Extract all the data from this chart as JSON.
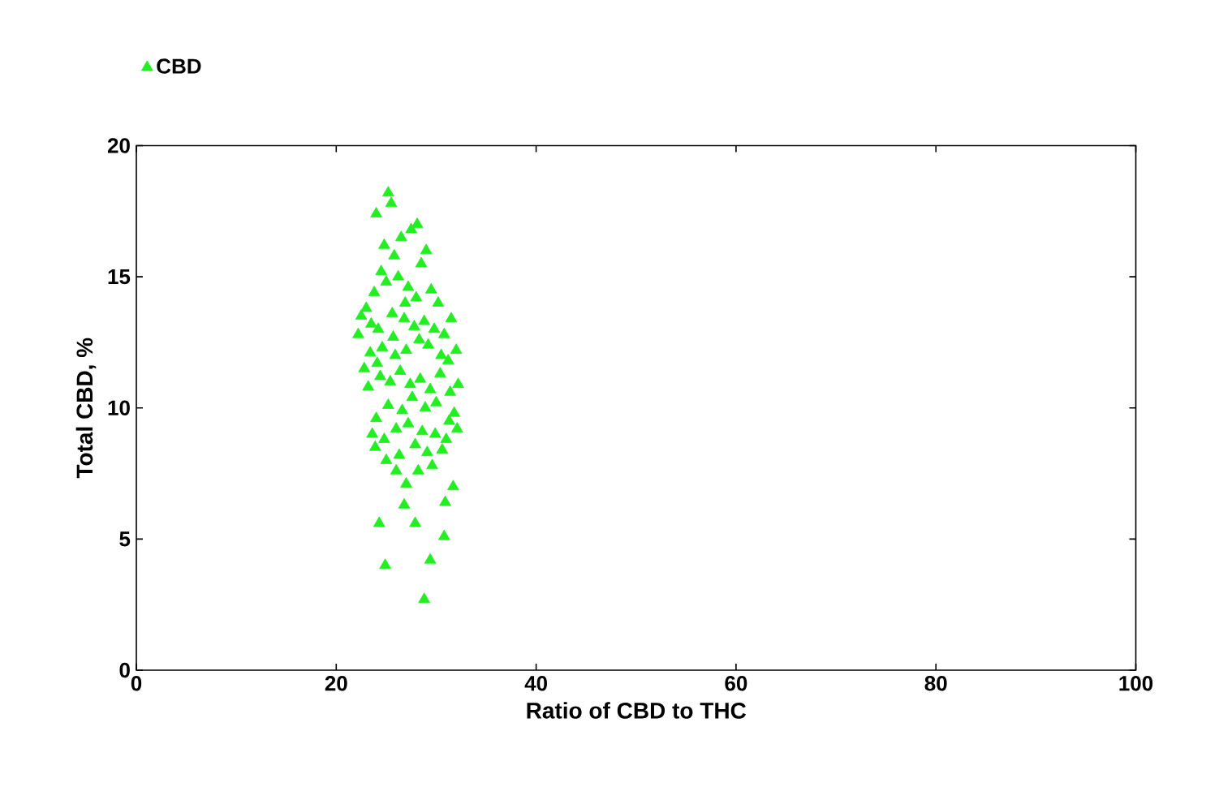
{
  "chart_data": {
    "type": "scatter",
    "xlabel": "Ratio of CBD to THC",
    "ylabel": "Total CBD, %",
    "xlim": [
      0,
      100
    ],
    "ylim": [
      0,
      20
    ],
    "xticks": [
      0,
      20,
      40,
      60,
      80,
      100
    ],
    "yticks": [
      0,
      5,
      10,
      15,
      20
    ],
    "legend": "top left",
    "marker": "triangle",
    "grid": false,
    "series": [
      {
        "name": "CBD",
        "color": "#22ee22",
        "x": [
          25.2,
          28.1,
          28.8,
          24.9,
          29.4,
          24.3,
          30.8,
          27.9,
          30.9,
          31.7,
          26.8,
          27.0,
          26.0,
          24.0,
          25.5,
          26.5,
          25.8,
          24.8,
          27.5,
          28.5,
          29.0,
          24.5,
          25.0,
          26.2,
          27.2,
          28.0,
          29.5,
          30.2,
          23.8,
          23.0,
          22.5,
          22.2,
          23.5,
          24.2,
          25.6,
          26.8,
          27.8,
          28.8,
          29.8,
          30.8,
          31.5,
          32.0,
          31.2,
          30.5,
          29.2,
          28.3,
          27.0,
          25.9,
          24.6,
          23.4,
          22.8,
          23.2,
          24.4,
          25.4,
          26.4,
          27.4,
          28.4,
          29.4,
          30.4,
          31.4,
          32.2,
          31.8,
          30.0,
          28.9,
          27.6,
          26.6,
          25.2,
          24.0,
          23.6,
          24.8,
          26.0,
          27.2,
          28.6,
          29.9,
          31.0,
          32.1,
          30.6,
          29.1,
          27.9,
          26.3,
          25.0,
          23.9,
          28.2,
          29.6,
          31.3,
          26.9,
          25.7,
          24.1
        ],
        "values": [
          18.2,
          17.0,
          2.7,
          4.0,
          4.2,
          5.6,
          5.1,
          5.6,
          6.4,
          7.0,
          6.3,
          7.1,
          7.6,
          17.4,
          17.8,
          16.5,
          15.8,
          16.2,
          16.8,
          15.5,
          16.0,
          15.2,
          14.8,
          15.0,
          14.6,
          14.2,
          14.5,
          14.0,
          14.4,
          13.8,
          13.5,
          12.8,
          13.2,
          13.0,
          13.6,
          13.4,
          13.1,
          13.3,
          13.0,
          12.8,
          13.4,
          12.2,
          11.8,
          12.0,
          12.4,
          12.6,
          12.2,
          12.0,
          12.3,
          12.1,
          11.5,
          10.8,
          11.2,
          11.0,
          11.4,
          10.9,
          11.1,
          10.7,
          11.3,
          10.6,
          10.9,
          9.8,
          10.2,
          10.0,
          10.4,
          9.9,
          10.1,
          9.6,
          9.0,
          8.8,
          9.2,
          9.4,
          9.1,
          9.0,
          8.8,
          9.2,
          8.4,
          8.3,
          8.6,
          8.2,
          8.0,
          8.5,
          7.6,
          7.8,
          9.5,
          14.0,
          12.7,
          11.7
        ]
      }
    ]
  }
}
